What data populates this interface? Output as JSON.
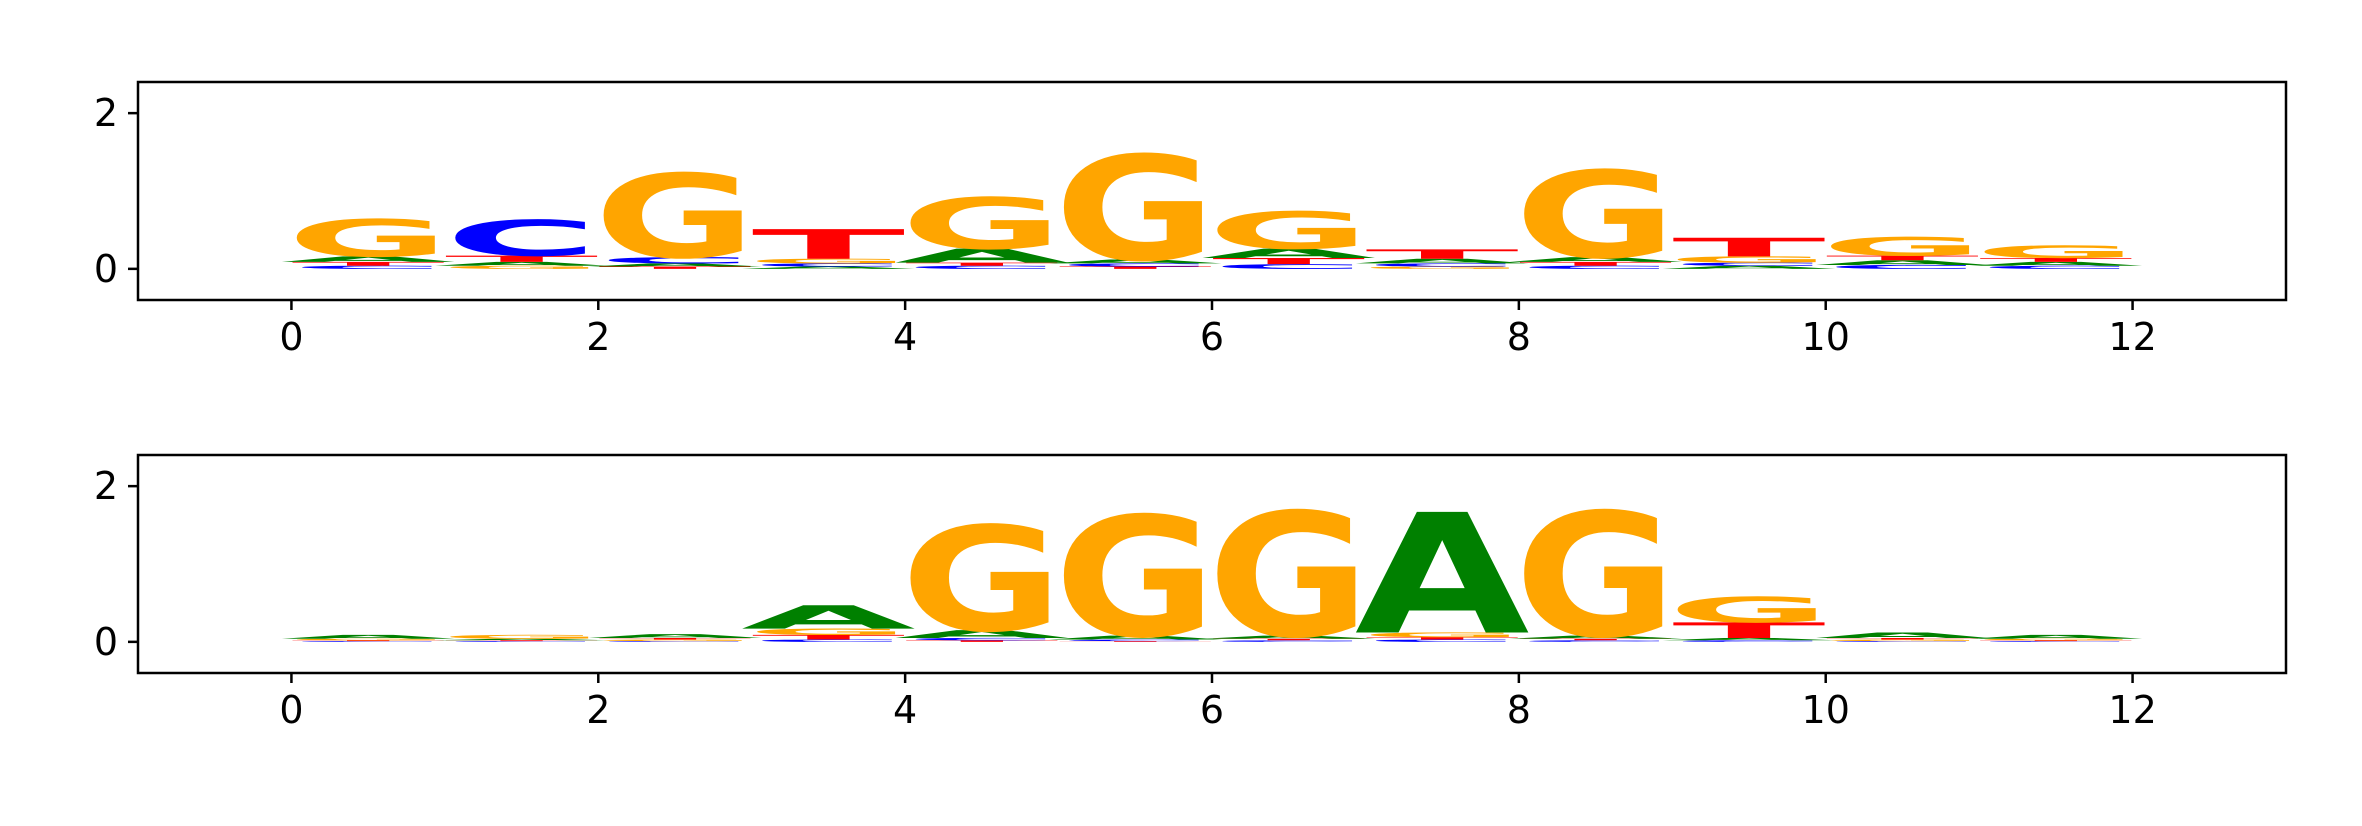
{
  "chart_data": [
    {
      "type": "sequence-logo",
      "alphabet": [
        "A",
        "C",
        "G",
        "T"
      ],
      "colors": {
        "A": "#008000",
        "C": "#0000ff",
        "G": "#ffa500",
        "T": "#ff0000"
      },
      "xlim": [
        -1,
        13
      ],
      "ylim": [
        -0.4,
        2.4
      ],
      "xticks": [
        0,
        2,
        4,
        6,
        8,
        10,
        12
      ],
      "yticks": [
        0,
        2
      ],
      "positions": [
        {
          "A": 0.07,
          "C": 0.04,
          "G": 0.48,
          "T": 0.05
        },
        {
          "A": 0.05,
          "C": 0.46,
          "G": 0.04,
          "T": 0.08
        },
        {
          "A": 0.04,
          "C": 0.08,
          "G": 1.08,
          "T": 0.03
        },
        {
          "A": 0.03,
          "C": 0.04,
          "G": 0.06,
          "T": 0.38
        },
        {
          "A": 0.18,
          "C": 0.04,
          "G": 0.66,
          "T": 0.04
        },
        {
          "A": 0.05,
          "C": 0.04,
          "G": 1.35,
          "T": 0.03
        },
        {
          "A": 0.12,
          "C": 0.06,
          "G": 0.48,
          "T": 0.08
        },
        {
          "A": 0.06,
          "C": 0.04,
          "G": 0.03,
          "T": 0.12
        },
        {
          "A": 0.06,
          "C": 0.04,
          "G": 1.12,
          "T": 0.05
        },
        {
          "A": 0.04,
          "C": 0.04,
          "G": 0.08,
          "T": 0.24
        },
        {
          "A": 0.06,
          "C": 0.05,
          "G": 0.24,
          "T": 0.06
        },
        {
          "A": 0.05,
          "C": 0.04,
          "G": 0.16,
          "T": 0.05
        }
      ]
    },
    {
      "type": "sequence-logo",
      "alphabet": [
        "A",
        "C",
        "G",
        "T"
      ],
      "colors": {
        "A": "#008000",
        "C": "#0000ff",
        "G": "#ffa500",
        "T": "#ff0000"
      },
      "xlim": [
        -1,
        13
      ],
      "ylim": [
        -0.4,
        2.4
      ],
      "xticks": [
        0,
        2,
        4,
        6,
        8,
        10,
        12
      ],
      "yticks": [
        0,
        2
      ],
      "positions": [
        {
          "A": 0.05,
          "C": 0.01,
          "G": 0.02,
          "T": 0.01
        },
        {
          "A": 0.02,
          "C": 0.01,
          "G": 0.05,
          "T": 0.01
        },
        {
          "A": 0.05,
          "C": 0.01,
          "G": 0.02,
          "T": 0.02
        },
        {
          "A": 0.3,
          "C": 0.03,
          "G": 0.08,
          "T": 0.06
        },
        {
          "A": 0.1,
          "C": 0.03,
          "G": 1.35,
          "T": 0.02
        },
        {
          "A": 0.05,
          "C": 0.02,
          "G": 1.55,
          "T": 0.01
        },
        {
          "A": 0.04,
          "C": 0.02,
          "G": 1.6,
          "T": 0.02
        },
        {
          "A": 1.55,
          "C": 0.03,
          "G": 0.06,
          "T": 0.03
        },
        {
          "A": 0.04,
          "C": 0.02,
          "G": 1.6,
          "T": 0.02
        },
        {
          "A": 0.03,
          "C": 0.02,
          "G": 0.33,
          "T": 0.2
        },
        {
          "A": 0.07,
          "C": 0.01,
          "G": 0.02,
          "T": 0.02
        },
        {
          "A": 0.05,
          "C": 0.01,
          "G": 0.02,
          "T": 0.01
        }
      ]
    }
  ]
}
